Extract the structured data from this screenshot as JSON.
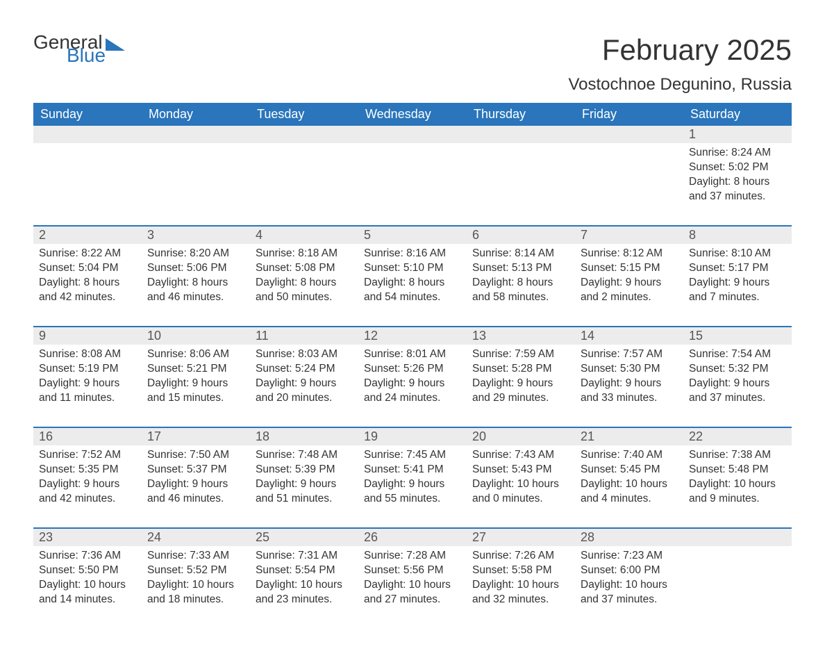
{
  "logo": {
    "general": "General",
    "blue": "Blue"
  },
  "title": "February 2025",
  "subtitle": "Vostochnoe Degunino, Russia",
  "colors": {
    "accent": "#2a75bb",
    "header_text": "#ffffff",
    "daynum_bg": "#ececec",
    "body_text": "#333333",
    "background": "#ffffff"
  },
  "typography": {
    "title_fontsize": 42,
    "subtitle_fontsize": 24,
    "weekday_fontsize": 18,
    "daynum_fontsize": 18,
    "body_fontsize": 15.5,
    "font_family": "Arial"
  },
  "weekdays": [
    "Sunday",
    "Monday",
    "Tuesday",
    "Wednesday",
    "Thursday",
    "Friday",
    "Saturday"
  ],
  "weeks": [
    [
      null,
      null,
      null,
      null,
      null,
      null,
      {
        "n": "1",
        "sunrise": "8:24 AM",
        "sunset": "5:02 PM",
        "dl_h": "8",
        "dl_m": "37"
      }
    ],
    [
      {
        "n": "2",
        "sunrise": "8:22 AM",
        "sunset": "5:04 PM",
        "dl_h": "8",
        "dl_m": "42"
      },
      {
        "n": "3",
        "sunrise": "8:20 AM",
        "sunset": "5:06 PM",
        "dl_h": "8",
        "dl_m": "46"
      },
      {
        "n": "4",
        "sunrise": "8:18 AM",
        "sunset": "5:08 PM",
        "dl_h": "8",
        "dl_m": "50"
      },
      {
        "n": "5",
        "sunrise": "8:16 AM",
        "sunset": "5:10 PM",
        "dl_h": "8",
        "dl_m": "54"
      },
      {
        "n": "6",
        "sunrise": "8:14 AM",
        "sunset": "5:13 PM",
        "dl_h": "8",
        "dl_m": "58"
      },
      {
        "n": "7",
        "sunrise": "8:12 AM",
        "sunset": "5:15 PM",
        "dl_h": "9",
        "dl_m": "2"
      },
      {
        "n": "8",
        "sunrise": "8:10 AM",
        "sunset": "5:17 PM",
        "dl_h": "9",
        "dl_m": "7"
      }
    ],
    [
      {
        "n": "9",
        "sunrise": "8:08 AM",
        "sunset": "5:19 PM",
        "dl_h": "9",
        "dl_m": "11"
      },
      {
        "n": "10",
        "sunrise": "8:06 AM",
        "sunset": "5:21 PM",
        "dl_h": "9",
        "dl_m": "15"
      },
      {
        "n": "11",
        "sunrise": "8:03 AM",
        "sunset": "5:24 PM",
        "dl_h": "9",
        "dl_m": "20"
      },
      {
        "n": "12",
        "sunrise": "8:01 AM",
        "sunset": "5:26 PM",
        "dl_h": "9",
        "dl_m": "24"
      },
      {
        "n": "13",
        "sunrise": "7:59 AM",
        "sunset": "5:28 PM",
        "dl_h": "9",
        "dl_m": "29"
      },
      {
        "n": "14",
        "sunrise": "7:57 AM",
        "sunset": "5:30 PM",
        "dl_h": "9",
        "dl_m": "33"
      },
      {
        "n": "15",
        "sunrise": "7:54 AM",
        "sunset": "5:32 PM",
        "dl_h": "9",
        "dl_m": "37"
      }
    ],
    [
      {
        "n": "16",
        "sunrise": "7:52 AM",
        "sunset": "5:35 PM",
        "dl_h": "9",
        "dl_m": "42"
      },
      {
        "n": "17",
        "sunrise": "7:50 AM",
        "sunset": "5:37 PM",
        "dl_h": "9",
        "dl_m": "46"
      },
      {
        "n": "18",
        "sunrise": "7:48 AM",
        "sunset": "5:39 PM",
        "dl_h": "9",
        "dl_m": "51"
      },
      {
        "n": "19",
        "sunrise": "7:45 AM",
        "sunset": "5:41 PM",
        "dl_h": "9",
        "dl_m": "55"
      },
      {
        "n": "20",
        "sunrise": "7:43 AM",
        "sunset": "5:43 PM",
        "dl_h": "10",
        "dl_m": "0"
      },
      {
        "n": "21",
        "sunrise": "7:40 AM",
        "sunset": "5:45 PM",
        "dl_h": "10",
        "dl_m": "4"
      },
      {
        "n": "22",
        "sunrise": "7:38 AM",
        "sunset": "5:48 PM",
        "dl_h": "10",
        "dl_m": "9"
      }
    ],
    [
      {
        "n": "23",
        "sunrise": "7:36 AM",
        "sunset": "5:50 PM",
        "dl_h": "10",
        "dl_m": "14"
      },
      {
        "n": "24",
        "sunrise": "7:33 AM",
        "sunset": "5:52 PM",
        "dl_h": "10",
        "dl_m": "18"
      },
      {
        "n": "25",
        "sunrise": "7:31 AM",
        "sunset": "5:54 PM",
        "dl_h": "10",
        "dl_m": "23"
      },
      {
        "n": "26",
        "sunrise": "7:28 AM",
        "sunset": "5:56 PM",
        "dl_h": "10",
        "dl_m": "27"
      },
      {
        "n": "27",
        "sunrise": "7:26 AM",
        "sunset": "5:58 PM",
        "dl_h": "10",
        "dl_m": "32"
      },
      {
        "n": "28",
        "sunrise": "7:23 AM",
        "sunset": "6:00 PM",
        "dl_h": "10",
        "dl_m": "37"
      },
      null
    ]
  ],
  "labels": {
    "sunrise": "Sunrise:",
    "sunset": "Sunset:",
    "daylight": "Daylight:",
    "hours": "hours",
    "and": "and",
    "minutes": "minutes."
  }
}
